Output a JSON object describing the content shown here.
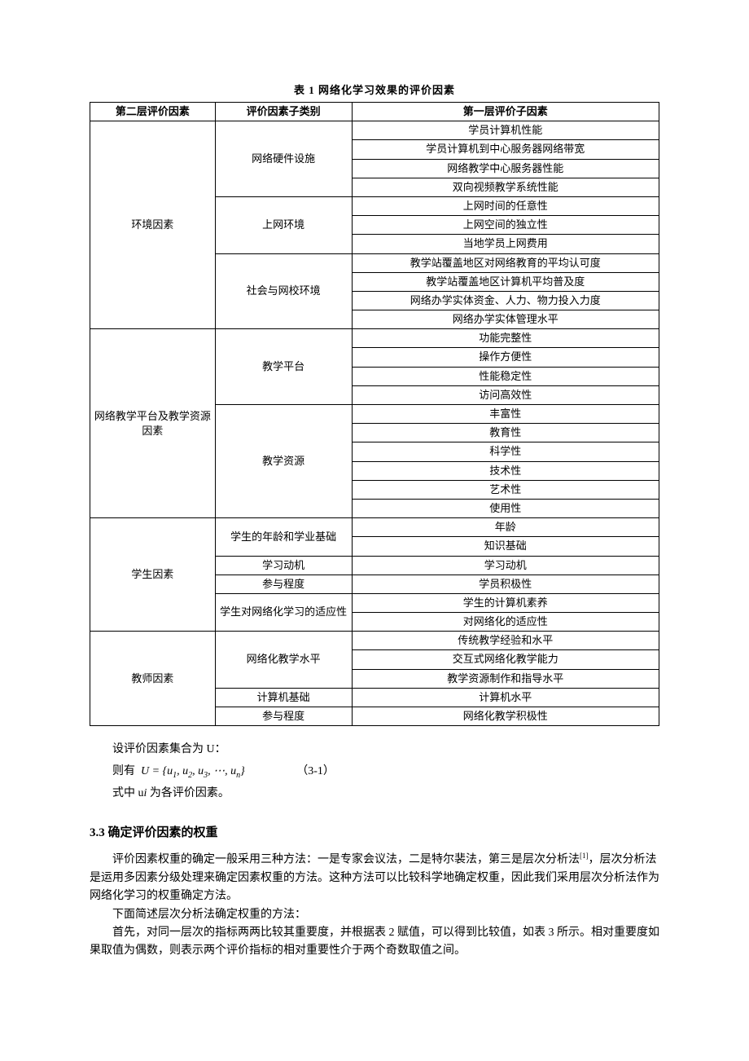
{
  "caption": "表 1    网络化学习效果的评价因素",
  "headers": {
    "col1": "第二层评价因素",
    "col2": "评价因素子类别",
    "col3": "第一层评价子因素"
  },
  "groups": [
    {
      "l2": "环境因素",
      "subs": [
        {
          "name": "网络硬件设施",
          "items": [
            "学员计算机性能",
            "学员计算机到中心服务器网络带宽",
            "网络教学中心服务器性能",
            "双向视频教学系统性能"
          ]
        },
        {
          "name": "上网环境",
          "items": [
            "上网时间的任意性",
            "上网空间的独立性",
            "当地学员上网费用"
          ]
        },
        {
          "name": "社会与网校环境",
          "items": [
            "教学站覆盖地区对网络教育的平均认可度",
            "教学站覆盖地区计算机平均普及度",
            "网络办学实体资金、人力、物力投入力度",
            "网络办学实体管理水平"
          ]
        }
      ]
    },
    {
      "l2": "网络教学平台及教学资源因素",
      "subs": [
        {
          "name": "教学平台",
          "items": [
            "功能完整性",
            "操作方便性",
            "性能稳定性",
            "访问高效性"
          ]
        },
        {
          "name": "教学资源",
          "items": [
            "丰富性",
            "教育性",
            "科学性",
            "技术性",
            "艺术性",
            "使用性"
          ]
        }
      ]
    },
    {
      "l2": "学生因素",
      "subs": [
        {
          "name": "学生的年龄和学业基础",
          "items": [
            "年龄",
            "知识基础"
          ]
        },
        {
          "name": "学习动机",
          "items": [
            "学习动机"
          ]
        },
        {
          "name": "参与程度",
          "items": [
            "学员积极性"
          ]
        },
        {
          "name": "学生对网络化学习的适应性",
          "items": [
            "学生的计算机素养",
            "对网络化的适应性"
          ]
        }
      ]
    },
    {
      "l2": "教师因素",
      "subs": [
        {
          "name": "网络化教学水平",
          "items": [
            "传统教学经验和水平",
            "交互式网络化教学能力",
            "教学资源制作和指导水平"
          ]
        },
        {
          "name": "计算机基础",
          "items": [
            "计算机水平"
          ]
        },
        {
          "name": "参与程度",
          "items": [
            "网络化教学积极性"
          ]
        }
      ]
    }
  ],
  "paragraphs": {
    "p1": "设评价因素集合为 U：",
    "formula_prefix": "则有",
    "formula_core": "U = {u",
    "formula_mid": ", u",
    "formula_dots": ", ⋯, u",
    "formula_close": "}",
    "formula_label": "（3-1）",
    "sub1": "1",
    "sub2": "2",
    "sub3": "3",
    "subn": "n",
    "p2a": "式中 u",
    "p2sub": "i",
    "p2b": " 为各评价因素。"
  },
  "section": "3.3   确定评价因素的权重",
  "body": {
    "b1": "评价因素权重的确定一般采用三种方法：一是专家会议法，二是特尔裴法，第三是层次分析法",
    "cite": "[1]",
    "b1b": "，层次分析法是运用多因素分级处理来确定因素权重的方法。这种方法可以比较科学地确定权重，因此我们采用层次分析法作为网络化学习的权重确定方法。",
    "b2": "下面简述层次分析法确定权重的方法：",
    "b3": "首先，对同一层次的指标两两比较其重要度，并根据表 2 赋值，可以得到比较值，如表 3 所示。相对重要度如果取值为偶数，则表示两个评价指标的相对重要性介于两个奇数取值之间。"
  }
}
